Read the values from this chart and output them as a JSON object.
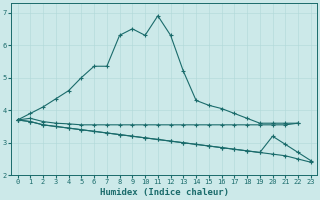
{
  "xlabel": "Humidex (Indice chaleur)",
  "background_color": "#cce9e9",
  "line_color": "#1a6b6b",
  "xlim": [
    -0.5,
    23.5
  ],
  "ylim": [
    2.0,
    7.3
  ],
  "yticks": [
    2,
    3,
    4,
    5,
    6,
    7
  ],
  "xticks": [
    0,
    1,
    2,
    3,
    4,
    5,
    6,
    7,
    8,
    9,
    10,
    11,
    12,
    13,
    14,
    15,
    16,
    17,
    18,
    19,
    20,
    21,
    22,
    23
  ],
  "series": [
    {
      "x": [
        0,
        1,
        2,
        3,
        4,
        5,
        6,
        7,
        8,
        9,
        10,
        11,
        12,
        13,
        14,
        15,
        16,
        17,
        18,
        19,
        20,
        21,
        22
      ],
      "y": [
        3.7,
        3.9,
        4.1,
        4.35,
        4.6,
        5.0,
        5.35,
        5.35,
        6.3,
        6.5,
        6.3,
        6.9,
        6.3,
        5.2,
        4.3,
        4.15,
        4.05,
        3.9,
        3.75,
        3.6,
        3.6,
        3.6,
        3.6
      ]
    },
    {
      "x": [
        0,
        1,
        2,
        3,
        4,
        5,
        6,
        7,
        8,
        9,
        10,
        11,
        12,
        13,
        14,
        15,
        16,
        17,
        18,
        19,
        20,
        21,
        22
      ],
      "y": [
        3.7,
        3.75,
        3.65,
        3.6,
        3.58,
        3.55,
        3.55,
        3.55,
        3.55,
        3.55,
        3.55,
        3.55,
        3.55,
        3.55,
        3.55,
        3.55,
        3.55,
        3.55,
        3.55,
        3.55,
        3.55,
        3.55,
        3.6
      ]
    },
    {
      "x": [
        0,
        1,
        2,
        3,
        4,
        5,
        6,
        7,
        8,
        9,
        10,
        11,
        12,
        13,
        14,
        15,
        16,
        17,
        18,
        19,
        20,
        21,
        22,
        23
      ],
      "y": [
        3.7,
        3.65,
        3.55,
        3.5,
        3.45,
        3.4,
        3.35,
        3.3,
        3.25,
        3.2,
        3.15,
        3.1,
        3.05,
        3.0,
        2.95,
        2.9,
        2.85,
        2.8,
        2.75,
        2.7,
        3.2,
        2.95,
        2.7,
        2.45
      ]
    },
    {
      "x": [
        0,
        1,
        2,
        3,
        4,
        5,
        6,
        7,
        8,
        9,
        10,
        11,
        12,
        13,
        14,
        15,
        16,
        17,
        18,
        19,
        20,
        21,
        22,
        23
      ],
      "y": [
        3.7,
        3.65,
        3.55,
        3.5,
        3.45,
        3.4,
        3.35,
        3.3,
        3.25,
        3.2,
        3.15,
        3.1,
        3.05,
        3.0,
        2.95,
        2.9,
        2.85,
        2.8,
        2.75,
        2.7,
        2.65,
        2.6,
        2.5,
        2.4
      ]
    }
  ]
}
